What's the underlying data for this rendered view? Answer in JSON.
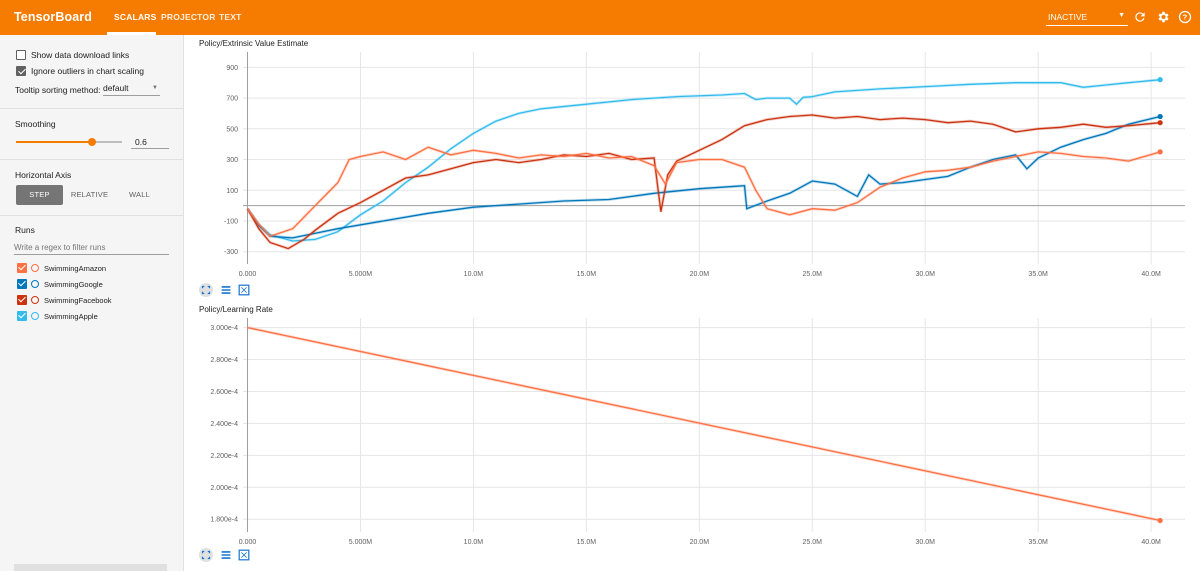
{
  "header": {
    "brand": "TensorBoard",
    "tabs": [
      {
        "label": "SCALARS",
        "active": true
      },
      {
        "label": "PROJECTOR",
        "active": false
      },
      {
        "label": "TEXT",
        "active": false
      }
    ],
    "run_status": "INACTIVE",
    "icons": [
      "refresh-icon",
      "gear-icon",
      "help-icon"
    ],
    "accent": "#f57c00"
  },
  "sidebar": {
    "show_download_links": {
      "label": "Show data download links",
      "checked": false
    },
    "ignore_outliers": {
      "label": "Ignore outliers in chart scaling",
      "checked": true
    },
    "tooltip_sorting": {
      "label": "Tooltip sorting method:",
      "value": "default"
    },
    "smoothing": {
      "title": "Smoothing",
      "value": "0.6",
      "level": 0.6
    },
    "horizontal_axis": {
      "title": "Horizontal Axis",
      "options": [
        {
          "label": "STEP",
          "active": true
        },
        {
          "label": "RELATIVE",
          "active": false
        },
        {
          "label": "WALL",
          "active": false
        }
      ]
    },
    "runs": {
      "title": "Runs",
      "filter_placeholder": "Write a regex to filter runs",
      "items": [
        {
          "name": "SwimmingAmazon",
          "color": "#ff7043",
          "checked": true
        },
        {
          "name": "SwimmingGoogle",
          "color": "#0077bb",
          "checked": true
        },
        {
          "name": "SwimmingFacebook",
          "color": "#cc3311",
          "checked": true
        },
        {
          "name": "SwimmingApple",
          "color": "#33bbee",
          "checked": true
        }
      ]
    }
  },
  "chart_data": [
    {
      "type": "line",
      "title": "Policy/Extrinsic Value Estimate",
      "x_tick_labels": [
        "0.000",
        "5.000M",
        "10.0M",
        "15.0M",
        "20.0M",
        "25.0M",
        "30.0M",
        "35.0M",
        "40.0M"
      ],
      "y_tick_labels": [
        "900",
        "700",
        "500",
        "300",
        "100",
        "-100",
        "-300"
      ],
      "xlim": [
        -0.2,
        41.5
      ],
      "ylim": [
        -380,
        1000
      ],
      "x_unit": "M steps",
      "series": [
        {
          "name": "SwimmingApple",
          "color": "#33bbee",
          "x": [
            0,
            0.5,
            1,
            2,
            3,
            4,
            5,
            6,
            7,
            8,
            9,
            10,
            11,
            12,
            13,
            15,
            17,
            19,
            21,
            22,
            22.5,
            23,
            24,
            24.3,
            24.6,
            25,
            26,
            28,
            30,
            32,
            34,
            36,
            37,
            38,
            39,
            40.4
          ],
          "y": [
            -20,
            -120,
            -190,
            -230,
            -220,
            -170,
            -60,
            30,
            150,
            250,
            370,
            470,
            550,
            600,
            630,
            660,
            690,
            710,
            720,
            730,
            690,
            700,
            700,
            660,
            705,
            710,
            740,
            760,
            775,
            790,
            800,
            800,
            770,
            785,
            800,
            820
          ]
        },
        {
          "name": "SwimmingGoogle",
          "color": "#0077bb",
          "x": [
            0,
            0.5,
            1,
            2,
            3,
            4,
            6,
            8,
            10,
            12,
            14,
            16,
            18,
            20,
            22,
            22.1,
            23,
            24,
            25,
            26,
            27,
            27.5,
            28,
            29,
            30,
            31,
            32,
            33,
            34,
            34.5,
            35,
            36,
            37,
            38,
            39,
            40.4
          ],
          "y": [
            -20,
            -130,
            -200,
            -210,
            -180,
            -150,
            -100,
            -50,
            -10,
            10,
            30,
            40,
            80,
            110,
            130,
            -20,
            30,
            80,
            160,
            140,
            60,
            200,
            140,
            150,
            170,
            190,
            250,
            300,
            330,
            240,
            310,
            380,
            430,
            470,
            530,
            580
          ]
        },
        {
          "name": "SwimmingFacebook",
          "color": "#cc3311",
          "x": [
            0,
            0.5,
            1,
            1.8,
            2.5,
            3,
            4,
            5,
            6,
            7,
            8,
            9,
            10,
            11,
            12,
            13,
            14,
            15,
            16,
            17,
            18,
            18.3,
            18.6,
            19,
            20,
            21,
            22,
            23,
            24,
            25,
            26,
            27,
            28,
            29,
            30,
            31,
            32,
            33,
            34,
            35,
            36,
            37,
            38,
            39,
            40.4
          ],
          "y": [
            -20,
            -150,
            -240,
            -280,
            -220,
            -160,
            -50,
            20,
            100,
            180,
            200,
            240,
            280,
            300,
            280,
            300,
            330,
            320,
            340,
            300,
            310,
            -40,
            200,
            290,
            360,
            430,
            520,
            560,
            580,
            590,
            570,
            580,
            560,
            570,
            560,
            540,
            550,
            530,
            480,
            500,
            510,
            530,
            510,
            520,
            540
          ]
        },
        {
          "name": "SwimmingAmazon",
          "color": "#ff7043",
          "x": [
            0,
            0.5,
            1,
            2,
            3,
            4,
            4.5,
            5,
            6,
            7,
            8,
            9,
            10,
            11,
            12,
            13,
            14,
            15,
            16,
            17,
            18,
            18.5,
            19,
            20,
            21,
            22,
            22.5,
            23,
            24,
            25,
            26,
            27,
            28,
            29,
            30,
            31,
            32,
            33,
            34,
            35,
            36,
            37,
            38,
            39,
            40.4
          ],
          "y": [
            -20,
            -120,
            -200,
            -150,
            0,
            150,
            300,
            320,
            350,
            300,
            380,
            330,
            360,
            340,
            310,
            330,
            320,
            340,
            310,
            320,
            260,
            140,
            280,
            300,
            300,
            250,
            100,
            -20,
            -60,
            -20,
            -30,
            20,
            120,
            180,
            220,
            230,
            250,
            290,
            320,
            350,
            340,
            320,
            310,
            290,
            350
          ]
        }
      ]
    },
    {
      "type": "line",
      "title": "Policy/Learning Rate",
      "x_tick_labels": [
        "0.000",
        "5.000M",
        "10.0M",
        "15.0M",
        "20.0M",
        "25.0M",
        "30.0M",
        "35.0M",
        "40.0M"
      ],
      "y_tick_labels": [
        "3.000e-4",
        "2.800e-4",
        "2.600e-4",
        "2.400e-4",
        "2.200e-4",
        "2.000e-4",
        "1.800e-4"
      ],
      "xlim": [
        -0.2,
        41.5
      ],
      "ylim": [
        0.000172,
        0.000306
      ],
      "series": [
        {
          "name": "SwimmingAmazon",
          "color": "#ff7043",
          "x": [
            0,
            40.4
          ],
          "y": [
            0.0003,
            0.0001792
          ]
        }
      ]
    }
  ]
}
